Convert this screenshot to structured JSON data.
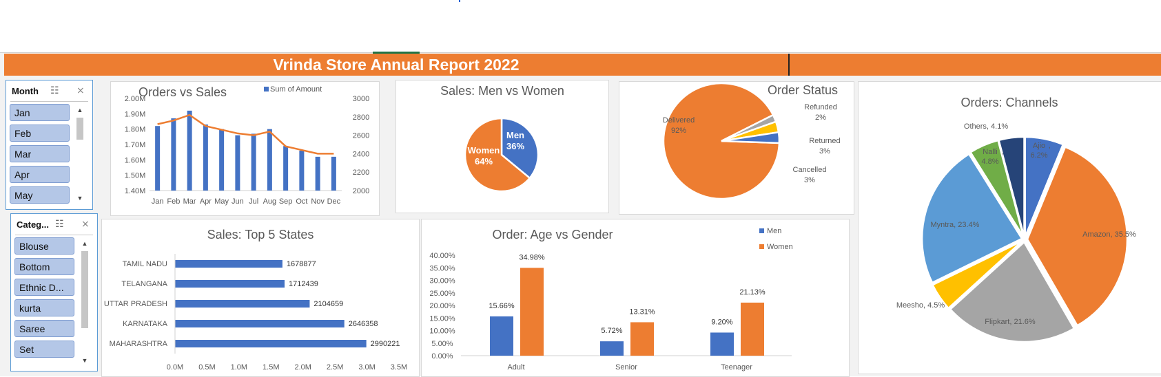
{
  "title": "Vrinda Store Annual Report 2022",
  "colors": {
    "accent": "#ed7d31",
    "blue": "#4472c4",
    "orange": "#ed7d31",
    "gray": "#a5a5a5",
    "yellow": "#ffc000",
    "lightblue": "#5b9bd5",
    "green": "#70ad47",
    "navy": "#264478"
  },
  "slicers": {
    "month": {
      "header": "Month",
      "items": [
        "Jan",
        "Feb",
        "Mar",
        "Apr",
        "May"
      ]
    },
    "category": {
      "header": "Categ...",
      "items": [
        "Blouse",
        "Bottom",
        "Ethnic D...",
        "kurta",
        "Saree",
        "Set"
      ]
    }
  },
  "chart_data": [
    {
      "id": "orders_vs_sales",
      "type": "bar",
      "title": "Orders vs Sales",
      "categories": [
        "Jan",
        "Feb",
        "Mar",
        "Apr",
        "May",
        "Jun",
        "Jul",
        "Aug",
        "Sep",
        "Oct",
        "Nov",
        "Dec"
      ],
      "series": [
        {
          "name": "Sum of Amount",
          "type": "bar",
          "axis": "left",
          "values": [
            1.82,
            1.87,
            1.92,
            1.83,
            1.8,
            1.76,
            1.77,
            1.8,
            1.69,
            1.66,
            1.62,
            1.62
          ]
        },
        {
          "type": "line",
          "axis": "right",
          "values": [
            2720,
            2760,
            2820,
            2700,
            2660,
            2620,
            2600,
            2640,
            2480,
            2440,
            2400,
            2400
          ]
        }
      ],
      "ylim_left": [
        1.4,
        2.0
      ],
      "yticks_left": [
        "1.40M",
        "1.50M",
        "1.60M",
        "1.70M",
        "1.80M",
        "1.90M",
        "2.00M"
      ],
      "ylim_right": [
        2000,
        3000
      ],
      "yticks_right": [
        "2000",
        "2200",
        "2400",
        "2600",
        "2800",
        "3000"
      ],
      "legend": "top-right"
    },
    {
      "id": "men_vs_women",
      "type": "pie",
      "title": "Sales: Men vs Women",
      "labels": [
        "Men",
        "Women"
      ],
      "values": [
        36,
        64
      ],
      "value_labels": [
        "36%",
        "64%"
      ]
    },
    {
      "id": "order_status",
      "type": "pie",
      "title": "Order Status",
      "labels": [
        "Delivered",
        "Refunded",
        "Returned",
        "Cancelled"
      ],
      "values": [
        92,
        2,
        3,
        3
      ],
      "value_labels": [
        "92%",
        "2%",
        "3%",
        "3%"
      ]
    },
    {
      "id": "channels",
      "type": "pie",
      "title": "Orders: Channels",
      "labels": [
        "Ajio",
        "Amazon",
        "Flipkart",
        "Meesho",
        "Myntra",
        "Nalli",
        "Others"
      ],
      "values": [
        6.2,
        35.5,
        21.6,
        4.5,
        23.4,
        4.8,
        4.1
      ],
      "value_labels": [
        "6.2%",
        "35.5%",
        "21.6%",
        "4.5%",
        "23.4%",
        "4.8%",
        "4.1%"
      ]
    },
    {
      "id": "top_states",
      "type": "bar",
      "orientation": "horizontal",
      "title": "Sales: Top 5 States",
      "categories": [
        "TAMIL NADU",
        "TELANGANA",
        "UTTAR PRADESH",
        "KARNATAKA",
        "MAHARASHTRA"
      ],
      "values": [
        1678877,
        1712439,
        2104659,
        2646358,
        2990221
      ],
      "value_labels": [
        "1678877",
        "1712439",
        "2104659",
        "2646358",
        "2990221"
      ],
      "xlim": [
        0,
        3500000
      ],
      "xticks": [
        "0.0M",
        "0.5M",
        "1.0M",
        "1.5M",
        "2.0M",
        "2.5M",
        "3.0M",
        "3.5M"
      ]
    },
    {
      "id": "age_vs_gender",
      "type": "bar",
      "title": "Order: Age vs Gender",
      "categories": [
        "Adult",
        "Senior",
        "Teenager"
      ],
      "series": [
        {
          "name": "Men",
          "values": [
            15.66,
            5.72,
            9.2
          ],
          "labels": [
            "15.66%",
            "5.72%",
            "9.20%"
          ]
        },
        {
          "name": "Women",
          "values": [
            34.98,
            13.31,
            21.13
          ],
          "labels": [
            "34.98%",
            "13.31%",
            "21.13%"
          ]
        }
      ],
      "ylim": [
        0,
        40
      ],
      "yticks": [
        "0.00%",
        "5.00%",
        "10.00%",
        "15.00%",
        "20.00%",
        "25.00%",
        "30.00%",
        "35.00%",
        "40.00%"
      ],
      "legend": "top-right"
    }
  ]
}
